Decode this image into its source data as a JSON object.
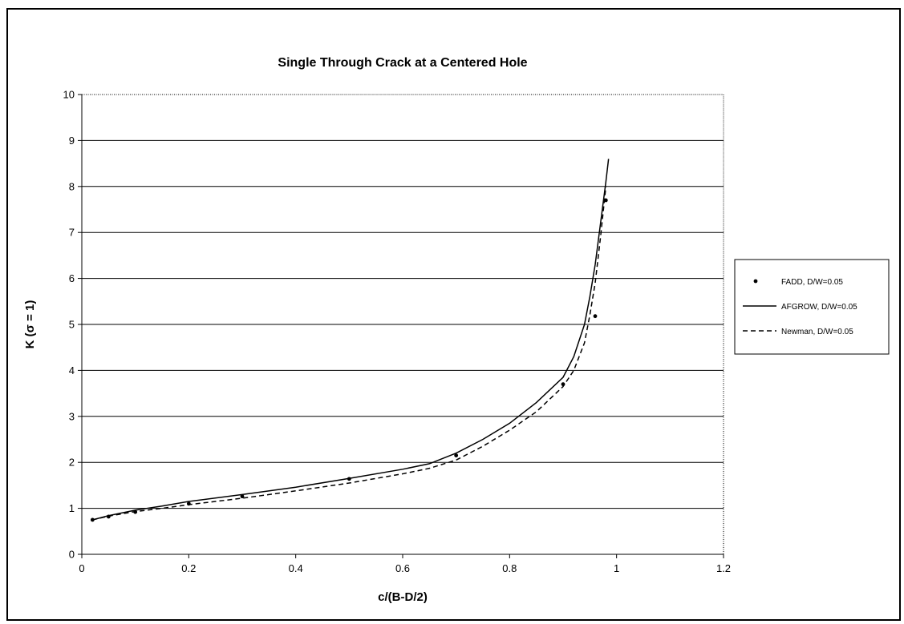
{
  "chart_data": {
    "type": "line",
    "title": "Single Through Crack at a Centered Hole",
    "xlabel": "c/(B-D/2)",
    "ylabel": "K (σ = 1)",
    "xlim": [
      0,
      1.2
    ],
    "ylim": [
      0,
      10
    ],
    "xticks": [
      "0",
      "0.2",
      "0.4",
      "0.6",
      "0.8",
      "1",
      "1.2"
    ],
    "yticks": [
      "0",
      "1",
      "2",
      "3",
      "4",
      "5",
      "6",
      "7",
      "8",
      "9",
      "10"
    ],
    "grid": "horizontal",
    "legend_position": "right",
    "series": [
      {
        "name": "FADD, D/W=0.05",
        "style": "points",
        "color": "#000000",
        "x": [
          0.02,
          0.05,
          0.1,
          0.2,
          0.3,
          0.5,
          0.7,
          0.9,
          0.96,
          0.98
        ],
        "y": [
          0.75,
          0.82,
          0.92,
          1.1,
          1.26,
          1.64,
          2.15,
          3.7,
          5.18,
          7.7
        ]
      },
      {
        "name": "AFGROW, D/W=0.05",
        "style": "solid",
        "color": "#000000",
        "x": [
          0.02,
          0.05,
          0.1,
          0.15,
          0.2,
          0.3,
          0.4,
          0.5,
          0.6,
          0.65,
          0.7,
          0.75,
          0.8,
          0.85,
          0.9,
          0.92,
          0.94,
          0.95,
          0.96,
          0.97,
          0.98,
          0.985
        ],
        "y": [
          0.75,
          0.84,
          0.96,
          1.05,
          1.15,
          1.3,
          1.46,
          1.65,
          1.85,
          1.97,
          2.2,
          2.5,
          2.85,
          3.3,
          3.85,
          4.3,
          5.0,
          5.6,
          6.3,
          7.2,
          8.1,
          8.6
        ]
      },
      {
        "name": "Newman, D/W=0.05",
        "style": "dashed",
        "color": "#000000",
        "x": [
          0.02,
          0.05,
          0.1,
          0.15,
          0.2,
          0.3,
          0.4,
          0.5,
          0.6,
          0.65,
          0.7,
          0.75,
          0.8,
          0.85,
          0.9,
          0.92,
          0.94,
          0.95,
          0.96,
          0.97,
          0.98
        ],
        "y": [
          0.75,
          0.83,
          0.93,
          1.0,
          1.08,
          1.22,
          1.38,
          1.55,
          1.75,
          1.87,
          2.05,
          2.35,
          2.7,
          3.1,
          3.65,
          4.0,
          4.6,
          5.2,
          5.9,
          6.9,
          8.0
        ]
      }
    ]
  }
}
